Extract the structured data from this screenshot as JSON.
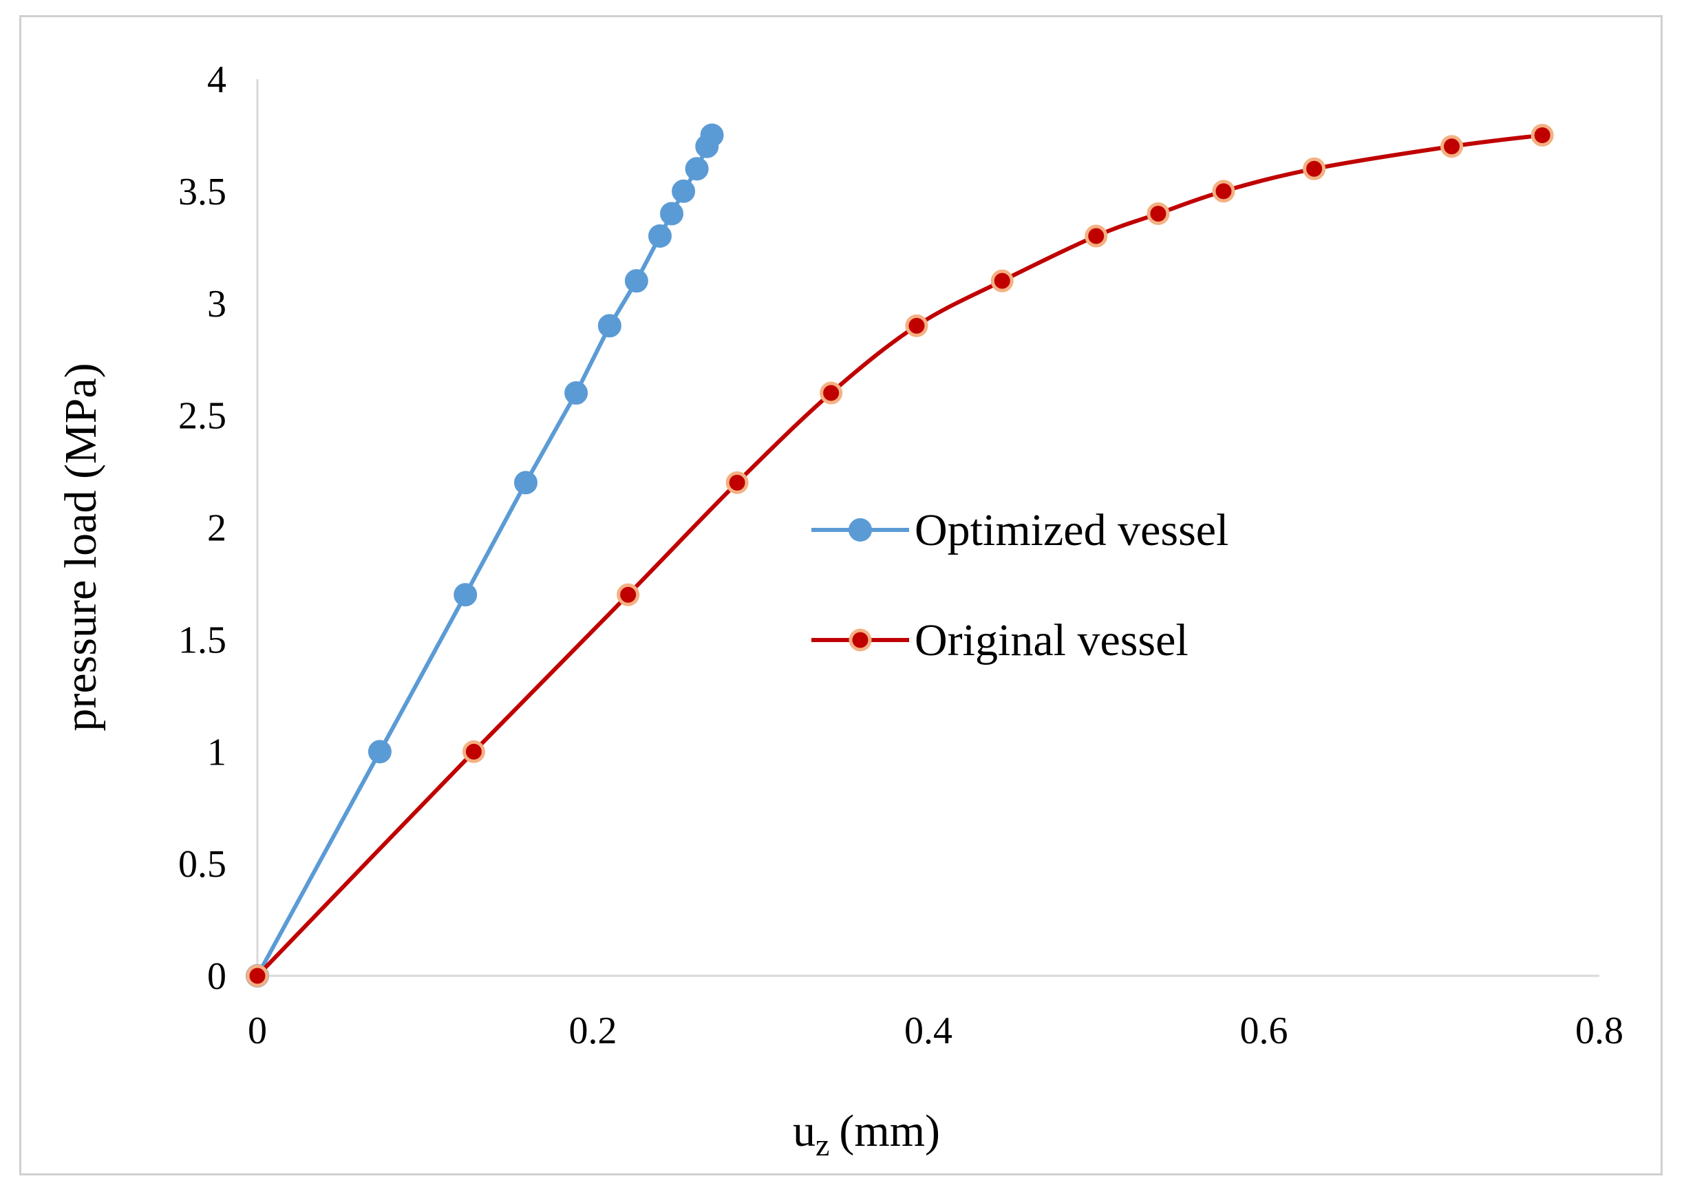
{
  "chart_data": {
    "type": "line",
    "title": "",
    "xlabel": "u",
    "xlabel_subscript": "z",
    "xlabel_unit": "(mm)",
    "ylabel": "pressure load (MPa)",
    "xlim": [
      0,
      0.8
    ],
    "ylim": [
      0,
      4
    ],
    "x_ticks": [
      0,
      0.2,
      0.4,
      0.6,
      0.8
    ],
    "x_tick_labels": [
      "0",
      "0.2",
      "0.4",
      "0.6",
      "0.8"
    ],
    "y_ticks": [
      0,
      0.5,
      1,
      1.5,
      2,
      2.5,
      3,
      3.5,
      4
    ],
    "y_tick_labels": [
      "0",
      "0.5",
      "1",
      "1.5",
      "2",
      "2.5",
      "3",
      "3.5",
      "4"
    ],
    "grid": false,
    "legend_position": "center-right",
    "series": [
      {
        "name": "Optimized vessel",
        "color": "#5b9bd5",
        "marker_fill": "#5b9bd5",
        "marker_edge": "#5b9bd5",
        "smooth": false,
        "x": [
          0,
          0.073,
          0.124,
          0.16,
          0.19,
          0.21,
          0.226,
          0.24,
          0.247,
          0.254,
          0.262,
          0.268,
          0.271
        ],
        "y": [
          0,
          1.0,
          1.7,
          2.2,
          2.6,
          2.9,
          3.1,
          3.3,
          3.4,
          3.5,
          3.6,
          3.7,
          3.75
        ]
      },
      {
        "name": "Original vessel",
        "color": "#c00000",
        "marker_fill": "#c00000",
        "marker_edge": "#f4b183",
        "smooth": true,
        "x": [
          0,
          0.129,
          0.221,
          0.286,
          0.342,
          0.393,
          0.444,
          0.5,
          0.537,
          0.576,
          0.63,
          0.712,
          0.766
        ],
        "y": [
          0,
          1.0,
          1.7,
          2.2,
          2.6,
          2.9,
          3.1,
          3.3,
          3.4,
          3.5,
          3.6,
          3.7,
          3.75
        ]
      }
    ]
  }
}
